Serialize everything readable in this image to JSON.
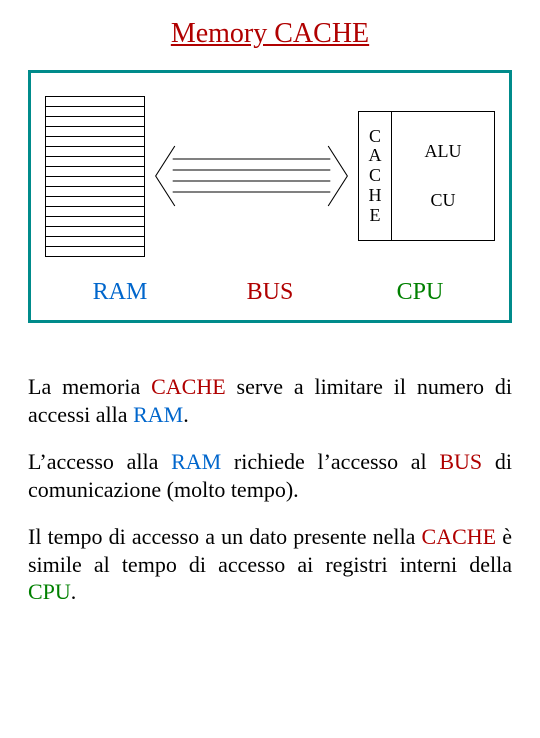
{
  "title": "Memory CACHE",
  "title_color": "#b00000",
  "border_color": "#008b8b",
  "ram_rows": 16,
  "cache_letters": [
    "C",
    "A",
    "C",
    "H",
    "E"
  ],
  "cpu_parts": {
    "alu": "ALU",
    "cu": "CU"
  },
  "labels": {
    "ram": "RAM",
    "bus": "BUS",
    "cpu": "CPU"
  },
  "label_colors": {
    "ram": "#0066cc",
    "bus": "#b00000",
    "cpu": "#008000"
  },
  "bus_arrows": {
    "count": 4,
    "stroke": "#000000",
    "stroke_width": 1
  },
  "paragraphs": [
    [
      {
        "t": "La memoria ",
        "c": "#000000"
      },
      {
        "t": "CACHE",
        "c": "#b00000"
      },
      {
        "t": " serve a limitare il numero di accessi alla ",
        "c": "#000000"
      },
      {
        "t": "RAM",
        "c": "#0066cc"
      },
      {
        "t": ".",
        "c": "#000000"
      }
    ],
    [
      {
        "t": "L’accesso alla ",
        "c": "#000000"
      },
      {
        "t": "RAM",
        "c": "#0066cc"
      },
      {
        "t": " richiede l’accesso al ",
        "c": "#000000"
      },
      {
        "t": "BUS",
        "c": "#b00000"
      },
      {
        "t": " di comunicazione (molto tempo).",
        "c": "#000000"
      }
    ],
    [
      {
        "t": "Il tempo di accesso a un dato presente nella ",
        "c": "#000000"
      },
      {
        "t": "CACHE",
        "c": "#b00000"
      },
      {
        "t": " è simile al tempo di accesso ai registri interni della ",
        "c": "#000000"
      },
      {
        "t": "CPU",
        "c": "#008000"
      },
      {
        "t": ".",
        "c": "#000000"
      }
    ]
  ]
}
